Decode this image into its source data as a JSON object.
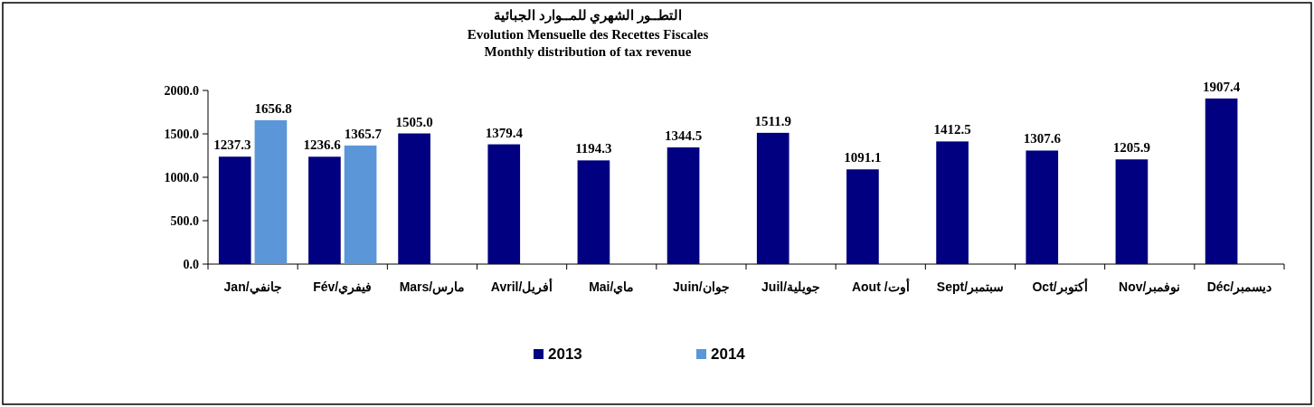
{
  "chart_data": {
    "type": "bar",
    "title": "التطــور الشهري للمــوارد الجبائية",
    "subtitle": "Evolution Mensuelle des Recettes Fiscales\nMonthly distribution of tax revenue",
    "categories": [
      "Jan/جانفي",
      "Fév/فيفري",
      "Mars/مارس",
      "Avril/أفريل",
      "Mai/ماي",
      "Juin/جوان",
      "Juil/جويلية",
      "Aout /أوت",
      "Sept/سبتمبر",
      "Oct/أكتوبر",
      "Nov/نوفمبر",
      "Déc/ديسمبر"
    ],
    "series": [
      {
        "name": "2013",
        "color": "#000080",
        "values": [
          1237.3,
          1236.6,
          1505.0,
          1379.4,
          1194.3,
          1344.5,
          1511.9,
          1091.1,
          1412.5,
          1307.6,
          1205.9,
          1907.4
        ],
        "value_labels": [
          "1237.3",
          "1236.6",
          "1505.0",
          "1379.4",
          "1194.3",
          "1344.5",
          "1511.9",
          "1091.1",
          "1412.5",
          "1307.6",
          "1205.9",
          "1907.4"
        ]
      },
      {
        "name": "2014",
        "color": "#5a96d8",
        "values": [
          1656.8,
          1365.7,
          null,
          null,
          null,
          null,
          null,
          null,
          null,
          null,
          null,
          null
        ],
        "value_labels": [
          "1656.8",
          "1365.7",
          null,
          null,
          null,
          null,
          null,
          null,
          null,
          null,
          null,
          null
        ]
      }
    ],
    "ylim": [
      0,
      2000
    ],
    "yticks": [
      {
        "value": 0,
        "label": "0.0"
      },
      {
        "value": 500,
        "label": "500.0"
      },
      {
        "value": 1000,
        "label": "1000.0"
      },
      {
        "value": 1500,
        "label": "1500.0"
      },
      {
        "value": 2000,
        "label": "2000.0"
      }
    ],
    "grid": false,
    "legend": "bottom"
  }
}
